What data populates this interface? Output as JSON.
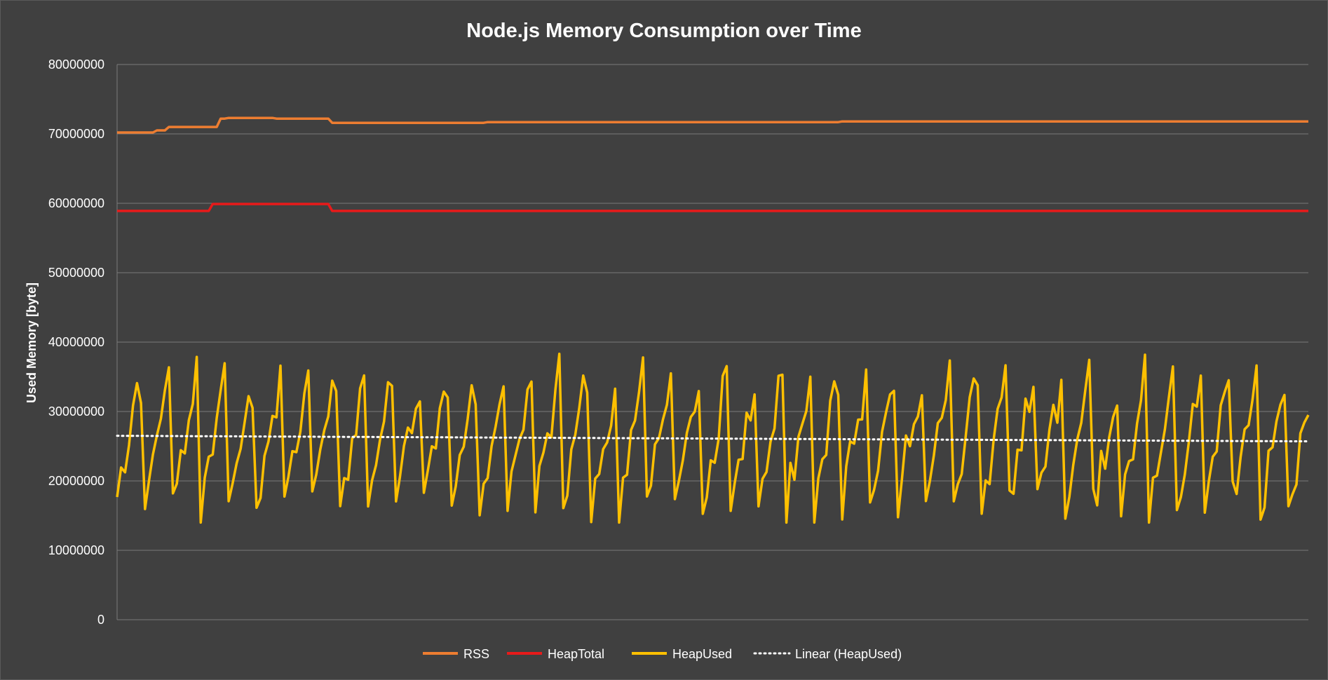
{
  "chart_data": {
    "type": "line",
    "title": "Node.js Memory Consumption over Time",
    "ylabel": "Used Memory [byte]",
    "xlabel": "",
    "ylim": [
      0,
      80000000
    ],
    "yticks": [
      0,
      10000000,
      20000000,
      30000000,
      40000000,
      50000000,
      60000000,
      70000000,
      80000000
    ],
    "ytick_labels": [
      "0",
      "10000000",
      "20000000",
      "30000000",
      "40000000",
      "50000000",
      "60000000",
      "70000000",
      "80000000"
    ],
    "grid": true,
    "legend_position": "bottom",
    "n_points": 300,
    "series": [
      {
        "name": "RSS",
        "color": "#ED7D31",
        "style": "solid",
        "segments": [
          {
            "from": 0,
            "to": 9,
            "value": 70200000
          },
          {
            "from": 10,
            "to": 12,
            "value": 70500000
          },
          {
            "from": 13,
            "to": 25,
            "value": 71000000
          },
          {
            "from": 26,
            "to": 27,
            "value": 72200000
          },
          {
            "from": 28,
            "to": 39,
            "value": 72300000
          },
          {
            "from": 40,
            "to": 53,
            "value": 72200000
          },
          {
            "from": 54,
            "to": 92,
            "value": 71600000
          },
          {
            "from": 93,
            "to": 181,
            "value": 71700000
          },
          {
            "from": 182,
            "to": 299,
            "value": 71800000
          }
        ]
      },
      {
        "name": "HeapTotal",
        "color": "#E81A1A",
        "style": "solid",
        "segments": [
          {
            "from": 0,
            "to": 23,
            "value": 58900000
          },
          {
            "from": 24,
            "to": 53,
            "value": 59900000
          },
          {
            "from": 54,
            "to": 299,
            "value": 58900000
          }
        ]
      },
      {
        "name": "HeapUsed",
        "color": "#FFC000",
        "style": "solid",
        "min": 14000000,
        "max": 38300000,
        "mean": 26000000
      },
      {
        "name": "Linear  (HeapUsed)",
        "color": "#FFFFFF",
        "style": "dotted",
        "start": 26500000,
        "end": 25700000
      }
    ]
  }
}
